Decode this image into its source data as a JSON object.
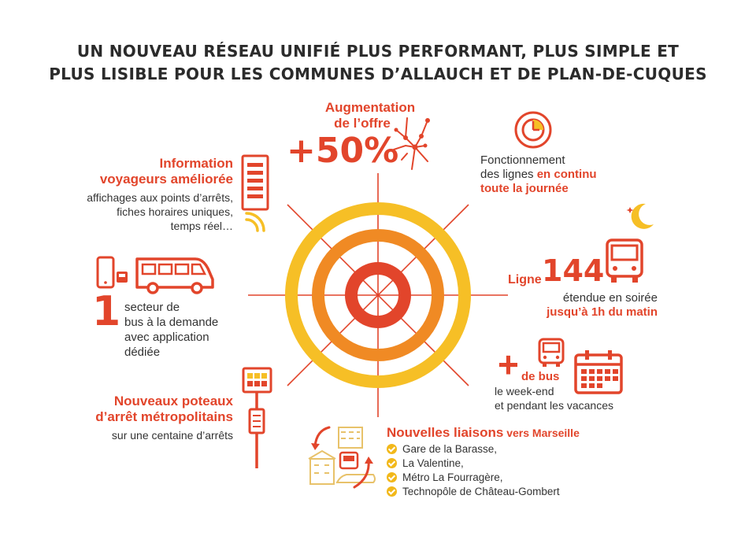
{
  "title": {
    "line1": "UN NOUVEAU RÉSEAU UNIFIÉ PLUS PERFORMANT, PLUS SIMPLE ET",
    "line2": "PLUS LISIBLE POUR LES COMMUNES D’ALLAUCH ET DE PLAN-DE-CUQUES"
  },
  "offre": {
    "line1": "Augmentation",
    "line2": "de l’offre",
    "value": "+50%"
  },
  "continu": {
    "line1": "Fonctionnement",
    "line2a": "des lignes ",
    "line2b": "en continu",
    "line3": "toute la journée"
  },
  "info": {
    "title1": "Information",
    "title2": "voyageurs améliorée",
    "desc1": "affichages aux points d’arrêts,",
    "desc2": "fiches horaires uniques,",
    "desc3": "temps réel…"
  },
  "ligne": {
    "prefix": "Ligne",
    "number": "144",
    "line1": "étendue en soirée",
    "line2": "jusqu’à 1h du matin"
  },
  "secteur": {
    "number": "1",
    "line1": "secteur de",
    "line2": "bus à la demande",
    "line3": "avec application",
    "line4": "dédiée"
  },
  "bus": {
    "plus": "+",
    "label": "de bus",
    "line1": "le week-end",
    "line2": "et pendant les vacances"
  },
  "poteaux": {
    "title1": "Nouveaux poteaux",
    "title2": "d’arrêt métropolitains",
    "desc": "sur une centaine d’arrêts"
  },
  "liaisons": {
    "title_a": "Nouvelles liaisons",
    "title_b": " vers Marseille",
    "items": [
      "Gare de la Barasse,",
      "La Valentine,",
      "Métro La Fourragère,",
      "Technopôle de Château-Gombert"
    ]
  },
  "colors": {
    "red": "#e2452b",
    "orange": "#f08a24",
    "yellow": "#f6bf26"
  }
}
